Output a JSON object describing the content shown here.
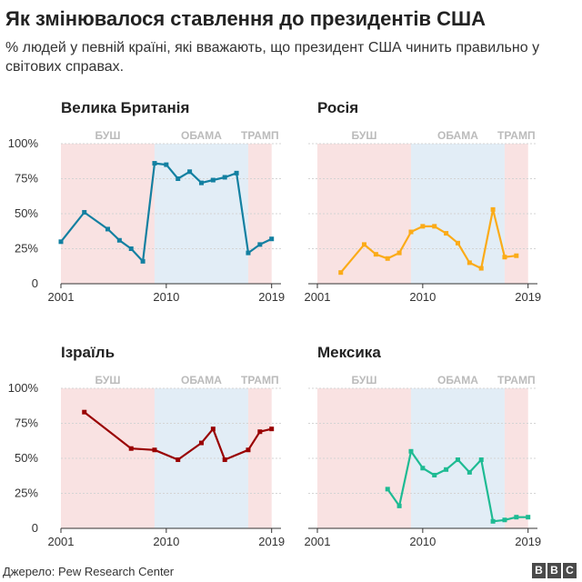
{
  "title": "Як змінювалося ставлення до президентів США",
  "subtitle": "% людей у певній країні, які вважають, що президент США чинить правильно у світових справах.",
  "source": "Джерело: Pew Research Center",
  "logo": [
    "B",
    "B",
    "C"
  ],
  "colors": {
    "bush_band": "#f9e2e2",
    "obama_band": "#e2edf6",
    "trump_band": "#f9e2e2",
    "era_label": "#bbbbbb",
    "grid": "#d4d4d4"
  },
  "chart_data": [
    {
      "type": "line",
      "title": "Велика Британія",
      "color": "#1380a1",
      "eras": [
        {
          "name": "БУШ",
          "start": 2001,
          "end": 2009
        },
        {
          "name": "ОБАМА",
          "start": 2009,
          "end": 2017
        },
        {
          "name": "ТРАМП",
          "start": 2017,
          "end": 2019
        }
      ],
      "xlim": [
        2001,
        2019.8
      ],
      "ylim": [
        0,
        100
      ],
      "xticks": [
        2001,
        2010,
        2019
      ],
      "yticks": [
        0,
        25,
        50,
        75,
        100
      ],
      "ytick_labels": [
        "0",
        "25%",
        "50%",
        "75%",
        "100%"
      ],
      "x": [
        2001,
        2003,
        2005,
        2006,
        2007,
        2008,
        2009,
        2010,
        2011,
        2012,
        2013,
        2014,
        2015,
        2016,
        2017,
        2018,
        2019
      ],
      "y": [
        30,
        51,
        39,
        31,
        25,
        16,
        86,
        85,
        75,
        80,
        72,
        74,
        76,
        79,
        22,
        28,
        32
      ]
    },
    {
      "type": "line",
      "title": "Росія",
      "color": "#fbab18",
      "eras": [
        {
          "name": "БУШ",
          "start": 2001,
          "end": 2009
        },
        {
          "name": "ОБАМА",
          "start": 2009,
          "end": 2017
        },
        {
          "name": "ТРАМП",
          "start": 2017,
          "end": 2019
        }
      ],
      "xlim": [
        2001,
        2019.8
      ],
      "ylim": [
        0,
        100
      ],
      "xticks": [
        2001,
        2010,
        2019
      ],
      "yticks": [
        0,
        25,
        50,
        75,
        100
      ],
      "ytick_labels": [
        "0",
        "25%",
        "50%",
        "75%",
        "100%"
      ],
      "x": [
        2003,
        2005,
        2006,
        2007,
        2008,
        2009,
        2010,
        2011,
        2012,
        2013,
        2014,
        2015,
        2016,
        2017,
        2018
      ],
      "y": [
        8,
        28,
        21,
        18,
        22,
        37,
        41,
        41,
        36,
        29,
        15,
        11,
        53,
        19,
        20
      ]
    },
    {
      "type": "line",
      "title": "Ізраїль",
      "color": "#990000",
      "eras": [
        {
          "name": "БУШ",
          "start": 2001,
          "end": 2009
        },
        {
          "name": "ОБАМА",
          "start": 2009,
          "end": 2017
        },
        {
          "name": "ТРАМП",
          "start": 2017,
          "end": 2019
        }
      ],
      "xlim": [
        2001,
        2019.8
      ],
      "ylim": [
        0,
        100
      ],
      "xticks": [
        2001,
        2010,
        2019
      ],
      "yticks": [
        0,
        25,
        50,
        75,
        100
      ],
      "ytick_labels": [
        "0",
        "25%",
        "50%",
        "75%",
        "100%"
      ],
      "x": [
        2003,
        2007,
        2009,
        2011,
        2013,
        2014,
        2015,
        2017,
        2018,
        2019
      ],
      "y": [
        83,
        57,
        56,
        49,
        61,
        71,
        49,
        56,
        69,
        71
      ]
    },
    {
      "type": "line",
      "title": "Мексика",
      "color": "#1ebb93",
      "eras": [
        {
          "name": "БУШ",
          "start": 2001,
          "end": 2009
        },
        {
          "name": "ОБАМА",
          "start": 2009,
          "end": 2017
        },
        {
          "name": "ТРАМП",
          "start": 2017,
          "end": 2019
        }
      ],
      "xlim": [
        2001,
        2019.8
      ],
      "ylim": [
        0,
        100
      ],
      "xticks": [
        2001,
        2010,
        2019
      ],
      "yticks": [
        0,
        25,
        50,
        75,
        100
      ],
      "ytick_labels": [
        "0",
        "25%",
        "50%",
        "75%",
        "100%"
      ],
      "x": [
        2007,
        2008,
        2009,
        2010,
        2011,
        2012,
        2013,
        2014,
        2015,
        2016,
        2017,
        2018,
        2019
      ],
      "y": [
        28,
        16,
        55,
        43,
        38,
        42,
        49,
        40,
        49,
        5,
        6,
        8,
        8
      ]
    }
  ]
}
